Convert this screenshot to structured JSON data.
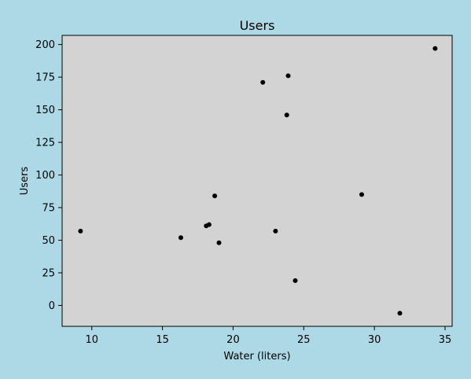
{
  "chart_data": {
    "type": "scatter",
    "title": "Users",
    "xlabel": "Water (liters)",
    "ylabel": "Users",
    "xlim": [
      7.9,
      35.5
    ],
    "ylim": [
      -16,
      207
    ],
    "xticks": [
      10,
      15,
      20,
      25,
      30,
      35
    ],
    "yticks": [
      0,
      25,
      50,
      75,
      100,
      125,
      150,
      175,
      200
    ],
    "grid": false,
    "colors": {
      "figure_bg": "#add8e6",
      "plot_bg": "#d3d3d3",
      "point": "#000000"
    },
    "points": [
      {
        "x": 9.2,
        "y": 57
      },
      {
        "x": 16.3,
        "y": 52
      },
      {
        "x": 18.1,
        "y": 61
      },
      {
        "x": 18.3,
        "y": 62
      },
      {
        "x": 18.7,
        "y": 84
      },
      {
        "x": 19.0,
        "y": 48
      },
      {
        "x": 22.1,
        "y": 171
      },
      {
        "x": 23.0,
        "y": 57
      },
      {
        "x": 23.8,
        "y": 146
      },
      {
        "x": 23.9,
        "y": 176
      },
      {
        "x": 24.4,
        "y": 19
      },
      {
        "x": 29.1,
        "y": 85
      },
      {
        "x": 31.8,
        "y": -6
      },
      {
        "x": 34.3,
        "y": 197
      }
    ]
  }
}
